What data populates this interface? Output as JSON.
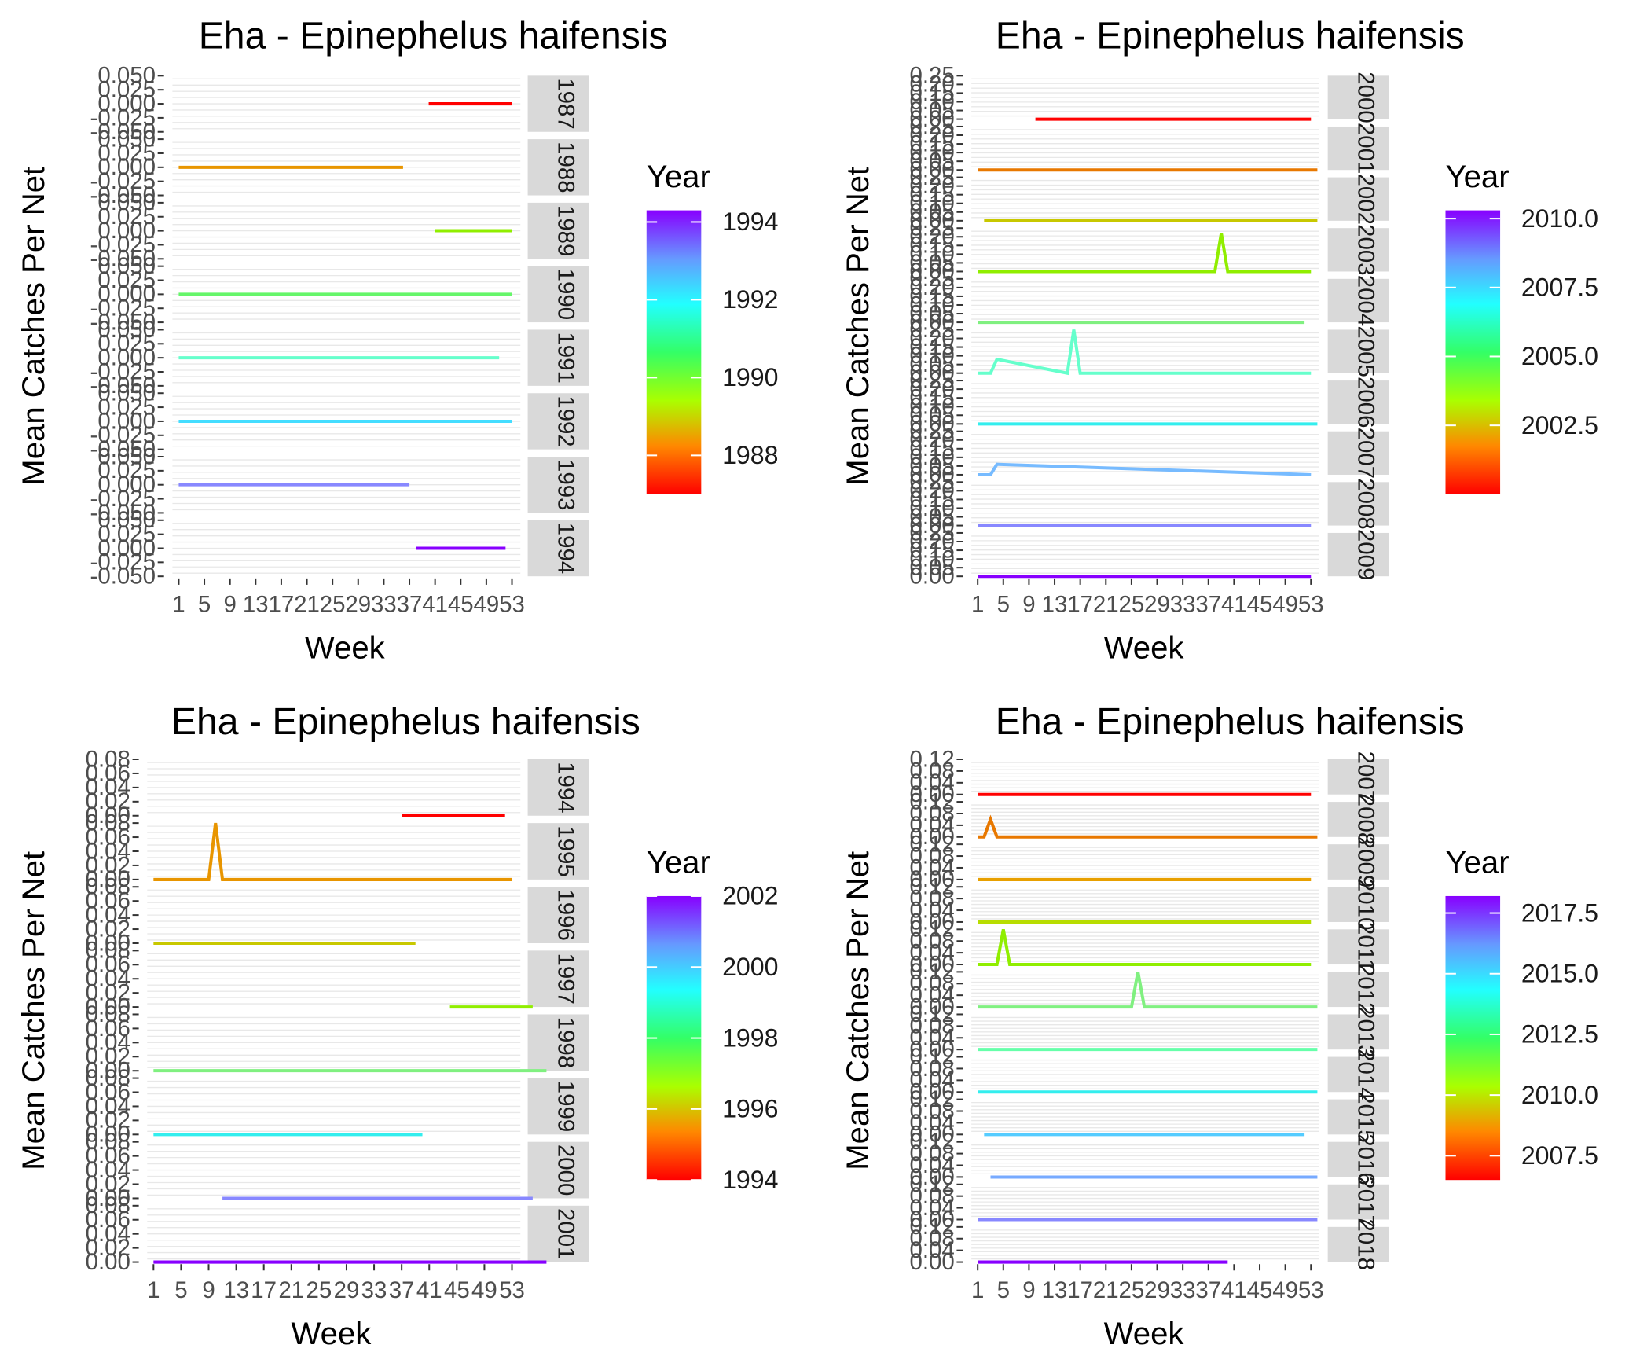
{
  "chart_data": [
    {
      "type": "line",
      "title": "Eha - Epinephelus haifensis",
      "xlabel": "Week",
      "ylabel": "Mean Catches Per Net",
      "x_ticks": [
        "1",
        "5",
        "9",
        "13",
        "17",
        "21",
        "25",
        "29",
        "33",
        "37",
        "41",
        "45",
        "49",
        "53"
      ],
      "xlim": [
        1,
        53
      ],
      "y_ticks": [
        "-0.050",
        "-0.025",
        "0.000",
        "0.025",
        "0.050"
      ],
      "ylim": [
        -0.05,
        0.05
      ],
      "grid": true,
      "legend": {
        "title": "Year",
        "position": "right",
        "labels": [
          "1994",
          "1992",
          "1990",
          "1988"
        ],
        "values": [
          1994,
          1992,
          1990,
          1988
        ],
        "range": [
          1987,
          1994.3
        ]
      },
      "panels": [
        {
          "strip": "1987",
          "color": "#ff0000",
          "x": [
            40,
            53
          ],
          "y": [
            0,
            0
          ]
        },
        {
          "strip": "1988",
          "color": "#e89500",
          "x": [
            1,
            36
          ],
          "y": [
            0,
            0
          ]
        },
        {
          "strip": "1989",
          "color": "#90ee00",
          "x": [
            41,
            53
          ],
          "y": [
            0,
            0
          ]
        },
        {
          "strip": "1990",
          "color": "#66f66a",
          "x": [
            1,
            53
          ],
          "y": [
            0,
            0
          ]
        },
        {
          "strip": "1991",
          "color": "#66ffcc",
          "x": [
            1,
            51
          ],
          "y": [
            0,
            0
          ]
        },
        {
          "strip": "1992",
          "color": "#44ddff",
          "x": [
            1,
            53
          ],
          "y": [
            0,
            0
          ]
        },
        {
          "strip": "1993",
          "color": "#8888ff",
          "x": [
            1,
            37
          ],
          "y": [
            0,
            0
          ]
        },
        {
          "strip": "1994",
          "color": "#8800ff",
          "x": [
            38,
            52
          ],
          "y": [
            0,
            0
          ]
        }
      ]
    },
    {
      "type": "line",
      "title": "Eha - Epinephelus haifensis",
      "xlabel": "Week",
      "ylabel": "Mean Catches Per Net",
      "x_ticks": [
        "1",
        "5",
        "9",
        "13",
        "17",
        "21",
        "25",
        "29",
        "33",
        "37",
        "41",
        "45",
        "49",
        "53"
      ],
      "xlim": [
        1,
        53
      ],
      "y_ticks": [
        "0.00",
        "0.05",
        "0.10",
        "0.15",
        "0.20",
        "0.25"
      ],
      "ylim": [
        0,
        0.25
      ],
      "grid": true,
      "legend": {
        "title": "Year",
        "position": "right",
        "labels": [
          "2010.0",
          "2007.5",
          "2005.0",
          "2002.5"
        ],
        "values": [
          2010,
          2007.5,
          2005,
          2002.5
        ],
        "range": [
          2000,
          2010.3
        ]
      },
      "panels": [
        {
          "strip": "2000",
          "color": "#ff0000",
          "x": [
            10,
            53
          ],
          "y": [
            0,
            0
          ]
        },
        {
          "strip": "2001",
          "color": "#e87800",
          "x": [
            1,
            54
          ],
          "y": [
            0,
            0
          ]
        },
        {
          "strip": "2002",
          "color": "#c8c800",
          "x": [
            2,
            54
          ],
          "y": [
            0,
            0
          ]
        },
        {
          "strip": "2003",
          "color": "#90ee00",
          "x": [
            1,
            38,
            39,
            40,
            53
          ],
          "y": [
            0,
            0,
            0.22,
            0,
            0
          ]
        },
        {
          "strip": "2004",
          "color": "#80f080",
          "x": [
            1,
            52
          ],
          "y": [
            0,
            0
          ]
        },
        {
          "strip": "2005",
          "color": "#66ffcc",
          "x": [
            1,
            3,
            4,
            15,
            16,
            17,
            53
          ],
          "y": [
            0,
            0,
            0.08,
            0,
            0.25,
            0,
            0
          ]
        },
        {
          "strip": "2006",
          "color": "#33eeee",
          "x": [
            1,
            54
          ],
          "y": [
            0,
            0
          ]
        },
        {
          "strip": "2007",
          "color": "#77bbff",
          "x": [
            1,
            3,
            4,
            53
          ],
          "y": [
            0,
            0,
            0.06,
            0
          ]
        },
        {
          "strip": "2008",
          "color": "#8888ff",
          "x": [
            1,
            53
          ],
          "y": [
            0,
            0
          ]
        },
        {
          "strip": "2009",
          "color": "#8800ff",
          "x": [
            1,
            53
          ],
          "y": [
            0,
            0
          ]
        }
      ]
    },
    {
      "type": "line",
      "title": "Eha - Epinephelus haifensis",
      "xlabel": "Week",
      "ylabel": "Mean Catches Per Net",
      "x_ticks": [
        "1",
        "5",
        "9",
        "13",
        "17",
        "21",
        "25",
        "29",
        "33",
        "37",
        "41",
        "45",
        "49",
        "53"
      ],
      "xlim": [
        1,
        53
      ],
      "y_ticks": [
        "0.00",
        "0.02",
        "0.04",
        "0.06",
        "0.08"
      ],
      "ylim": [
        0,
        0.08
      ],
      "grid": true,
      "legend": {
        "title": "Year",
        "position": "right",
        "labels": [
          "2002",
          "2000",
          "1998",
          "1996",
          "1994"
        ],
        "values": [
          2002,
          2000,
          1998,
          1996,
          1994
        ],
        "range": [
          1994,
          2002
        ]
      },
      "panels": [
        {
          "strip": "1994",
          "color": "#ff0000",
          "x": [
            37,
            52
          ],
          "y": [
            0,
            0
          ]
        },
        {
          "strip": "1995",
          "color": "#e89500",
          "x": [
            1,
            9,
            10,
            11,
            53
          ],
          "y": [
            0,
            0,
            0.08,
            0,
            0
          ]
        },
        {
          "strip": "1996",
          "color": "#c8c800",
          "x": [
            1,
            39
          ],
          "y": [
            0,
            0
          ]
        },
        {
          "strip": "1997",
          "color": "#90ee00",
          "x": [
            44,
            56
          ],
          "y": [
            0,
            0
          ]
        },
        {
          "strip": "1998",
          "color": "#80f080",
          "x": [
            1,
            58
          ],
          "y": [
            0,
            0
          ]
        },
        {
          "strip": "1999",
          "color": "#33eeee",
          "x": [
            1,
            40
          ],
          "y": [
            0,
            0
          ]
        },
        {
          "strip": "2000",
          "color": "#8888ff",
          "x": [
            11,
            56
          ],
          "y": [
            0,
            0
          ]
        },
        {
          "strip": "2001",
          "color": "#8800ff",
          "x": [
            1,
            58
          ],
          "y": [
            0,
            0
          ]
        }
      ]
    },
    {
      "type": "line",
      "title": "Eha - Epinephelus haifensis",
      "xlabel": "Week",
      "ylabel": "Mean Catches Per Net",
      "x_ticks": [
        "1",
        "5",
        "9",
        "13",
        "17",
        "21",
        "25",
        "29",
        "33",
        "37",
        "41",
        "45",
        "49",
        "53"
      ],
      "xlim": [
        1,
        53
      ],
      "y_ticks": [
        "0.00",
        "0.04",
        "0.08",
        "0.12"
      ],
      "ylim": [
        0,
        0.12
      ],
      "grid": true,
      "legend": {
        "title": "Year",
        "position": "right",
        "labels": [
          "2017.5",
          "2015.0",
          "2012.5",
          "2010.0",
          "2007.5"
        ],
        "values": [
          2017.5,
          2015,
          2012.5,
          2010,
          2007.5
        ],
        "range": [
          2006.5,
          2018.2
        ]
      },
      "panels": [
        {
          "strip": "2007",
          "color": "#ff0000",
          "x": [
            1,
            53
          ],
          "y": [
            0,
            0
          ]
        },
        {
          "strip": "2008",
          "color": "#e87800",
          "x": [
            1,
            2,
            3,
            4,
            54
          ],
          "y": [
            0,
            0,
            0.06,
            0,
            0
          ]
        },
        {
          "strip": "2009",
          "color": "#e8a000",
          "x": [
            1,
            53
          ],
          "y": [
            0,
            0
          ]
        },
        {
          "strip": "2010",
          "color": "#b8dd00",
          "x": [
            1,
            53
          ],
          "y": [
            0,
            0
          ]
        },
        {
          "strip": "2011",
          "color": "#90ee00",
          "x": [
            1,
            4,
            5,
            6,
            53
          ],
          "y": [
            0,
            0,
            0.12,
            0,
            0
          ]
        },
        {
          "strip": "2012",
          "color": "#80f080",
          "x": [
            1,
            25,
            26,
            27,
            54
          ],
          "y": [
            0,
            0,
            0.12,
            0,
            0
          ]
        },
        {
          "strip": "2013",
          "color": "#66ffaa",
          "x": [
            1,
            54
          ],
          "y": [
            0,
            0
          ]
        },
        {
          "strip": "2014",
          "color": "#33eeee",
          "x": [
            1,
            54
          ],
          "y": [
            0,
            0
          ]
        },
        {
          "strip": "2015",
          "color": "#55ccff",
          "x": [
            2,
            52
          ],
          "y": [
            0,
            0
          ]
        },
        {
          "strip": "2016",
          "color": "#77aaff",
          "x": [
            3,
            54
          ],
          "y": [
            0,
            0
          ]
        },
        {
          "strip": "2017",
          "color": "#8888ff",
          "x": [
            1,
            54
          ],
          "y": [
            0,
            0
          ]
        },
        {
          "strip": "2018",
          "color": "#8800ff",
          "x": [
            1,
            40
          ],
          "y": [
            0,
            0
          ]
        }
      ]
    }
  ]
}
